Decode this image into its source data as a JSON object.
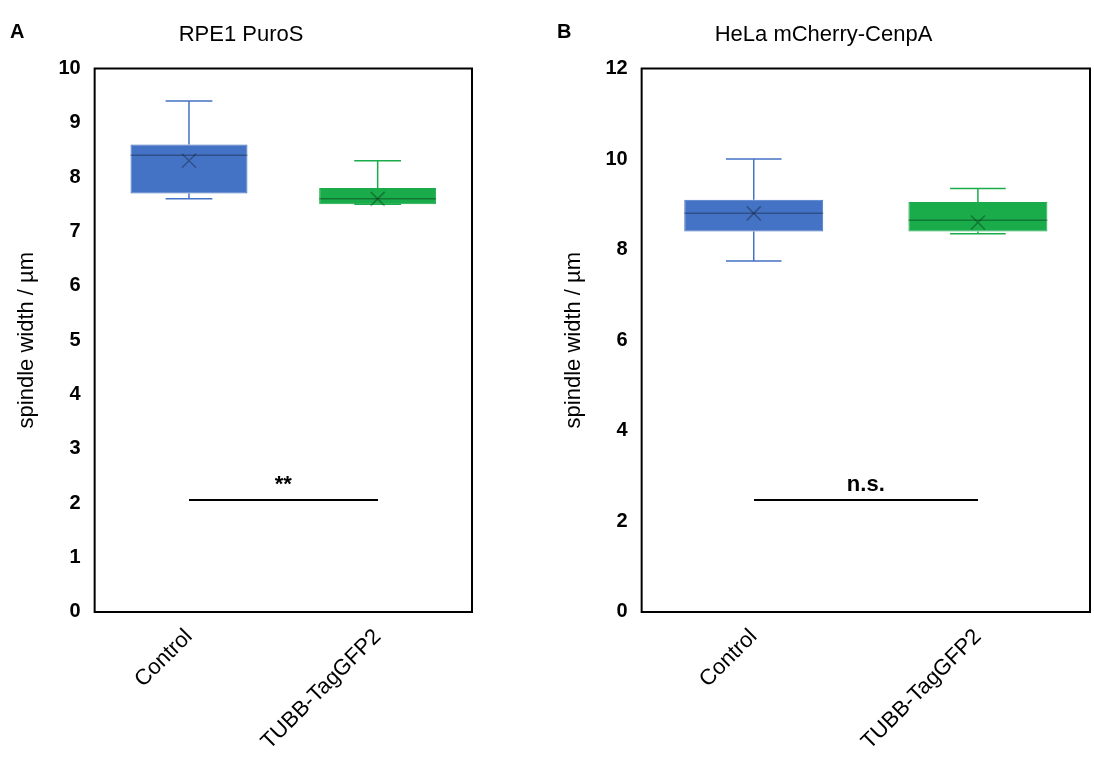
{
  "chart_data": [
    {
      "type": "box",
      "title": "RPE1 PuroS",
      "ylabel": "spindle width / µm",
      "categories": [
        "Control",
        "TUBB-TagGFP2"
      ],
      "colors": [
        "#4472c4",
        "#1aab4a"
      ],
      "boxes": [
        {
          "low": 7.6,
          "q1": 7.7,
          "median": 8.4,
          "q3": 8.6,
          "high": 9.4,
          "mean": 8.3
        },
        {
          "low": 7.5,
          "q1": 7.5,
          "median": 7.6,
          "q3": 7.8,
          "high": 8.3,
          "mean": 7.6
        }
      ],
      "ylim": [
        0,
        10
      ],
      "yticks": [
        0,
        1,
        2,
        3,
        4,
        5,
        6,
        7,
        8,
        9,
        10
      ],
      "grid": false,
      "legend": false,
      "annotations": [
        "A",
        "**"
      ]
    },
    {
      "type": "box",
      "title": "HeLa mCherry-CenpA",
      "ylabel": "spindle width / µm",
      "categories": [
        "Control",
        "TUBB-TagGFP2"
      ],
      "colors": [
        "#4472c4",
        "#1aab4a"
      ],
      "boxes": [
        {
          "low": 7.75,
          "q1": 8.4,
          "median": 8.8,
          "q3": 9.1,
          "high": 10.0,
          "mean": 8.8
        },
        {
          "low": 8.35,
          "q1": 8.4,
          "median": 8.65,
          "q3": 9.05,
          "high": 9.35,
          "mean": 8.6
        }
      ],
      "ylim": [
        0,
        12
      ],
      "yticks": [
        0,
        2,
        4,
        6,
        8,
        10,
        12
      ],
      "grid": false,
      "legend": false,
      "annotations": [
        "B",
        "n.s."
      ]
    }
  ]
}
